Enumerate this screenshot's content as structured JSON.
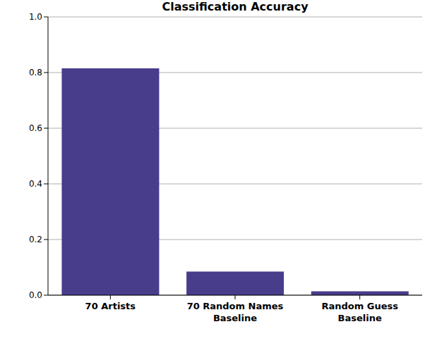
{
  "chart_data": {
    "type": "bar",
    "title": "Classification Accuracy",
    "categories": [
      "70 Artists",
      "70 Random Names\nBaseline",
      "Random Guess\nBaseline"
    ],
    "values": [
      0.815,
      0.085,
      0.014
    ],
    "color": "#483d8b",
    "ylim": [
      0,
      1
    ],
    "yticks": [
      {
        "value": 0,
        "label": "0.0"
      },
      0.2,
      0.4,
      0.6,
      0.8,
      {
        "value": 1,
        "label": "1.0"
      }
    ],
    "grid": true
  }
}
